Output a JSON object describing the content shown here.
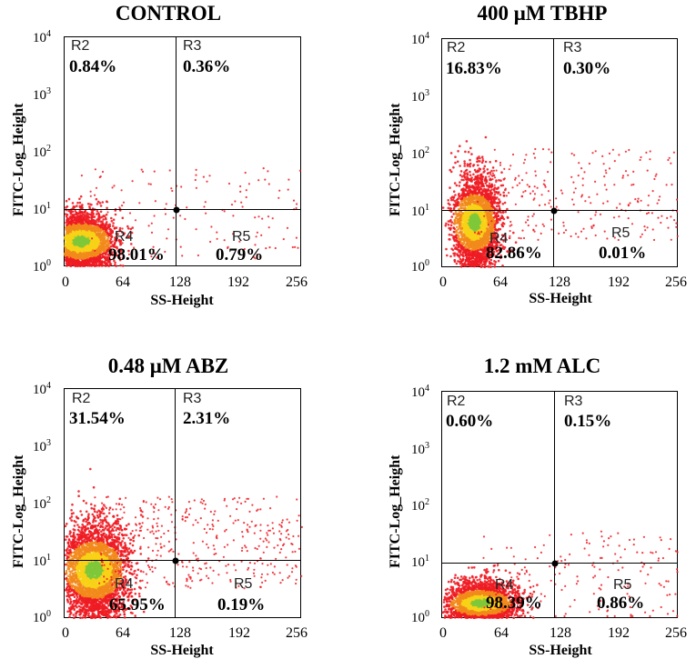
{
  "chart_data": [
    {
      "type": "scatter",
      "title": "CONTROL",
      "xlabel": "SS-Height",
      "ylabel": "FITC-Log_Height",
      "xlim": [
        0,
        256
      ],
      "ylim_log10": [
        0,
        4
      ],
      "x_ticks": [
        "0",
        "64",
        "128",
        "192",
        "256"
      ],
      "y_ticks": [
        {
          "base": "10",
          "exp": "0"
        },
        {
          "base": "10",
          "exp": "1"
        },
        {
          "base": "10",
          "exp": "2"
        },
        {
          "base": "10",
          "exp": "3"
        },
        {
          "base": "10",
          "exp": "4"
        }
      ],
      "gate": {
        "x": 120,
        "y": 10
      },
      "regions": [
        {
          "label": "R2",
          "value": "0.84%"
        },
        {
          "label": "R3",
          "value": "0.36%"
        },
        {
          "label": "R4",
          "value": "98.01%"
        },
        {
          "label": "R5",
          "value": "0.79%"
        }
      ],
      "population": {
        "center_x": 18,
        "center_log_y": 0.45,
        "spread_x": 28,
        "spread_log_y": 0.28,
        "n": 2600,
        "tail_n": 140
      }
    },
    {
      "type": "scatter",
      "title": "400 μM TBHP",
      "xlabel": "SS-Height",
      "ylabel": "FITC-Log_Height",
      "xlim": [
        0,
        256
      ],
      "ylim_log10": [
        0,
        4
      ],
      "x_ticks": [
        "0",
        "64",
        "128",
        "192",
        "256"
      ],
      "y_ticks": [
        {
          "base": "10",
          "exp": "0"
        },
        {
          "base": "10",
          "exp": "1"
        },
        {
          "base": "10",
          "exp": "2"
        },
        {
          "base": "10",
          "exp": "3"
        },
        {
          "base": "10",
          "exp": "4"
        }
      ],
      "gate": {
        "x": 120,
        "y": 10
      },
      "regions": [
        {
          "label": "R2",
          "value": "16.83%"
        },
        {
          "label": "R3",
          "value": "0.30%"
        },
        {
          "label": "R4",
          "value": "82.86%"
        },
        {
          "label": "R5",
          "value": "0.01%"
        }
      ],
      "population": {
        "center_x": 35,
        "center_log_y": 0.8,
        "spread_x": 20,
        "spread_log_y": 0.45,
        "n": 2800,
        "tail_n": 260
      }
    },
    {
      "type": "scatter",
      "title": "0.48 μM ABZ",
      "xlabel": "SS-Height",
      "ylabel": "FITC-Log_Height",
      "xlim": [
        0,
        256
      ],
      "ylim_log10": [
        0,
        4
      ],
      "x_ticks": [
        "0",
        "64",
        "128",
        "192",
        "256"
      ],
      "y_ticks": [
        {
          "base": "10",
          "exp": "0"
        },
        {
          "base": "10",
          "exp": "1"
        },
        {
          "base": "10",
          "exp": "2"
        },
        {
          "base": "10",
          "exp": "3"
        },
        {
          "base": "10",
          "exp": "4"
        }
      ],
      "gate": {
        "x": 120,
        "y": 10
      },
      "regions": [
        {
          "label": "R2",
          "value": "31.54%"
        },
        {
          "label": "R3",
          "value": "2.31%"
        },
        {
          "label": "R4",
          "value": "65.95%"
        },
        {
          "label": "R5",
          "value": "0.19%"
        }
      ],
      "population": {
        "center_x": 32,
        "center_log_y": 0.85,
        "spread_x": 28,
        "spread_log_y": 0.45,
        "n": 3400,
        "tail_n": 420
      }
    },
    {
      "type": "scatter",
      "title": "1.2 mM ALC",
      "xlabel": "SS-Height",
      "ylabel": "FITC-Log_Height",
      "xlim": [
        0,
        256
      ],
      "ylim_log10": [
        0,
        4
      ],
      "x_ticks": [
        "0",
        "64",
        "128",
        "192",
        "256"
      ],
      "y_ticks": [
        {
          "base": "10",
          "exp": "0"
        },
        {
          "base": "10",
          "exp": "1"
        },
        {
          "base": "10",
          "exp": "2"
        },
        {
          "base": "10",
          "exp": "3"
        },
        {
          "base": "10",
          "exp": "4"
        }
      ],
      "gate": {
        "x": 120,
        "y": 10
      },
      "regions": [
        {
          "label": "R2",
          "value": "0.60%"
        },
        {
          "label": "R3",
          "value": "0.15%"
        },
        {
          "label": "R4",
          "value": "98.39%"
        },
        {
          "label": "R5",
          "value": "0.86%"
        }
      ],
      "population": {
        "center_x": 42,
        "center_log_y": 0.28,
        "spread_x": 30,
        "spread_log_y": 0.2,
        "n": 2600,
        "tail_n": 180
      }
    }
  ]
}
